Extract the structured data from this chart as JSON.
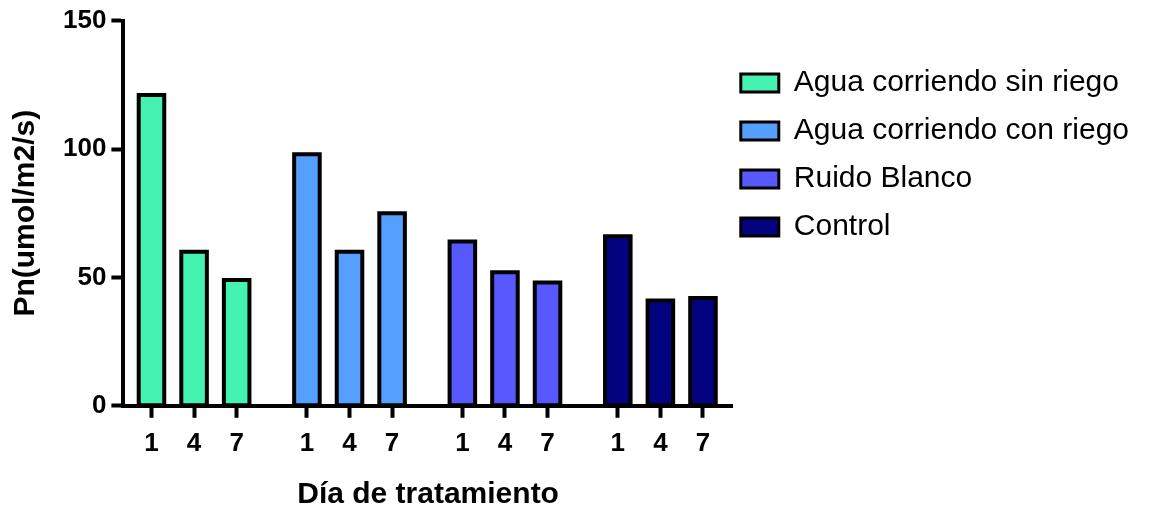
{
  "chart_data": {
    "type": "bar",
    "xlabel": "Día de tratamiento",
    "ylabel": "Pn(umol/m2/s)",
    "categories": [
      "1",
      "4",
      "7",
      "1",
      "4",
      "7",
      "1",
      "4",
      "7",
      "1",
      "4",
      "7"
    ],
    "series": [
      {
        "name": "Agua corriendo sin riego",
        "color": "#46f2b2",
        "values": [
          121,
          60,
          49,
          null,
          null,
          null,
          null,
          null,
          null,
          null,
          null,
          null
        ]
      },
      {
        "name": "Agua corriendo con riego",
        "color": "#55a0ff",
        "values": [
          null,
          null,
          null,
          98,
          60,
          75,
          null,
          null,
          null,
          null,
          null,
          null
        ]
      },
      {
        "name": "Ruido Blanco",
        "color": "#5858ff",
        "values": [
          null,
          null,
          null,
          null,
          null,
          null,
          64,
          52,
          48,
          null,
          null,
          null
        ]
      },
      {
        "name": "Control",
        "color": "#030380",
        "values": [
          null,
          null,
          null,
          null,
          null,
          null,
          null,
          null,
          null,
          66,
          41,
          42
        ]
      }
    ],
    "ylim": [
      0,
      150
    ],
    "yticks": [
      0,
      50,
      100,
      150
    ],
    "grid": false,
    "legend": "top right"
  }
}
